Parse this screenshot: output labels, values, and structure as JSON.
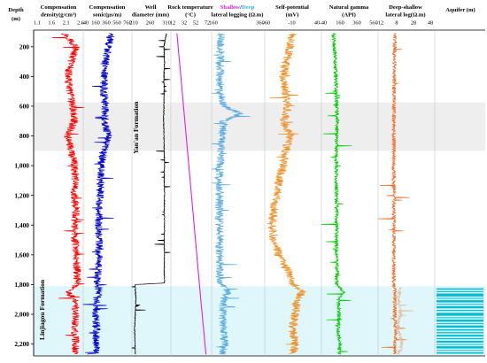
{
  "chart_data": {
    "type": "well-log",
    "depth_axis": {
      "label_line1": "Depth",
      "label_line2": "(m)",
      "range": [
        100,
        2280
      ],
      "ticks": [
        200,
        400,
        600,
        800,
        1000,
        1200,
        1400,
        1600,
        1800,
        2000,
        2200
      ],
      "tick_labels": [
        "200",
        "400",
        "600",
        "800",
        "1,000",
        "1,200",
        "1,400",
        "1,600",
        "1,800",
        "2,000",
        "2,200"
      ]
    },
    "highlight_bands": [
      {
        "top": 575,
        "bottom": 900,
        "color": "#eeeeee"
      },
      {
        "top": 1810,
        "bottom": 2280,
        "color": "#dff7fb"
      }
    ],
    "formations": [
      {
        "name": "Yan'an Formation",
        "top": 575,
        "bottom": 900
      },
      {
        "name": "Linjiagou Formation",
        "top": 1810,
        "bottom": 2280
      }
    ],
    "tracks": [
      {
        "id": "density",
        "title1": "Compensation",
        "title2": "density(g/cm³)",
        "ticks": [
          "1.1",
          "1.6",
          "2.1",
          "2.6"
        ],
        "series": [
          {
            "color": "#ff0000",
            "range": [
              1.1,
              2.6
            ],
            "points": [
              [
                110,
                2.0
              ],
              [
                200,
                2.35
              ],
              [
                300,
                2.2
              ],
              [
                400,
                2.1
              ],
              [
                500,
                2.15
              ],
              [
                600,
                2.25
              ],
              [
                700,
                2.3
              ],
              [
                800,
                2.1
              ],
              [
                900,
                2.2
              ],
              [
                1000,
                2.3
              ],
              [
                1100,
                2.32
              ],
              [
                1200,
                2.3
              ],
              [
                1300,
                2.35
              ],
              [
                1400,
                2.3
              ],
              [
                1500,
                2.32
              ],
              [
                1600,
                2.35
              ],
              [
                1700,
                2.38
              ],
              [
                1790,
                2.4
              ],
              [
                1850,
                2.1
              ],
              [
                1900,
                2.3
              ],
              [
                2000,
                2.35
              ],
              [
                2100,
                2.3
              ],
              [
                2200,
                2.35
              ],
              [
                2270,
                2.3
              ]
            ]
          }
        ]
      },
      {
        "id": "sonic",
        "title1": "Compensation",
        "title2": "sonic(µs/m)",
        "ticks": [
          "-40",
          "160",
          "360",
          "560",
          "760"
        ],
        "series": [
          {
            "color": "#0000cc",
            "range": [
              -40,
              760
            ],
            "points": [
              [
                110,
                420
              ],
              [
                200,
                380
              ],
              [
                300,
                330
              ],
              [
                400,
                320
              ],
              [
                500,
                300
              ],
              [
                600,
                330
              ],
              [
                700,
                320
              ],
              [
                800,
                380
              ],
              [
                900,
                300
              ],
              [
                1000,
                260
              ],
              [
                1100,
                250
              ],
              [
                1200,
                240
              ],
              [
                1300,
                230
              ],
              [
                1400,
                220
              ],
              [
                1500,
                230
              ],
              [
                1600,
                220
              ],
              [
                1700,
                210
              ],
              [
                1790,
                200
              ],
              [
                1850,
                230
              ],
              [
                1900,
                180
              ],
              [
                2000,
                170
              ],
              [
                2100,
                180
              ],
              [
                2200,
                170
              ],
              [
                2270,
                180
              ]
            ]
          }
        ]
      },
      {
        "id": "diameter",
        "title1": "Well",
        "title2": "diameter (mm)",
        "ticks": [
          "210",
          "260",
          "310"
        ],
        "series": [
          {
            "color": "#000000",
            "range": [
              205,
              330
            ],
            "points": [
              [
                110,
                318
              ],
              [
                200,
                310
              ],
              [
                300,
                312
              ],
              [
                400,
                310
              ],
              [
                500,
                311
              ],
              [
                600,
                310
              ],
              [
                700,
                309
              ],
              [
                800,
                310
              ],
              [
                900,
                311
              ],
              [
                1000,
                312
              ],
              [
                1100,
                311
              ],
              [
                1200,
                312
              ],
              [
                1300,
                311
              ],
              [
                1400,
                312
              ],
              [
                1500,
                311
              ],
              [
                1600,
                312
              ],
              [
                1700,
                311
              ],
              [
                1790,
                312
              ],
              [
                1800,
                215
              ],
              [
                1900,
                218
              ],
              [
                2000,
                216
              ],
              [
                2100,
                214
              ],
              [
                2200,
                215
              ],
              [
                2270,
                216
              ]
            ]
          }
        ]
      },
      {
        "id": "temperature",
        "title1": "Rock temperature",
        "title2": "(°C)",
        "ticks": [
          "12",
          "32",
          "52",
          "72"
        ],
        "series": [
          {
            "color": "#e020e0",
            "range": [
              12,
              72
            ],
            "points": [
              [
                110,
                21
              ],
              [
                400,
                27
              ],
              [
                700,
                33
              ],
              [
                1000,
                39
              ],
              [
                1300,
                45
              ],
              [
                1600,
                51
              ],
              [
                1900,
                57
              ],
              [
                2280,
                65
              ]
            ]
          }
        ]
      },
      {
        "id": "lateral",
        "title_parts": [
          {
            "text": "Shallow",
            "color": "#e020e0"
          },
          {
            "text": "/",
            "color": "#000000"
          },
          {
            "text": "Deep",
            "color": "#29b6f6"
          }
        ],
        "title2": "lateral logging (Ω.m)",
        "ticks": [
          "160",
          "360"
        ],
        "series": [
          {
            "color": "#5dade2",
            "range": [
              -40,
              400
            ],
            "points": [
              [
                110,
                40
              ],
              [
                300,
                30
              ],
              [
                500,
                30
              ],
              [
                600,
                70
              ],
              [
                650,
                200
              ],
              [
                700,
                60
              ],
              [
                800,
                50
              ],
              [
                900,
                40
              ],
              [
                1000,
                30
              ],
              [
                1200,
                25
              ],
              [
                1400,
                25
              ],
              [
                1600,
                30
              ],
              [
                1790,
                30
              ],
              [
                1850,
                100
              ],
              [
                1900,
                60
              ],
              [
                2000,
                50
              ],
              [
                2100,
                60
              ],
              [
                2200,
                70
              ],
              [
                2270,
                50
              ]
            ]
          }
        ]
      },
      {
        "id": "sp",
        "title1": "Self-potential",
        "title2": "(mV)",
        "ticks": [
          "-60",
          "-10",
          "40"
        ],
        "series": [
          {
            "color": "#f0932b",
            "range": [
              -60,
              60
            ],
            "points": [
              [
                110,
                0
              ],
              [
                200,
                -5
              ],
              [
                300,
                -15
              ],
              [
                400,
                -20
              ],
              [
                500,
                -15
              ],
              [
                600,
                -10
              ],
              [
                700,
                -20
              ],
              [
                800,
                -5
              ],
              [
                900,
                -15
              ],
              [
                1000,
                -20
              ],
              [
                1100,
                -30
              ],
              [
                1200,
                -35
              ],
              [
                1300,
                -40
              ],
              [
                1400,
                -45
              ],
              [
                1500,
                -40
              ],
              [
                1600,
                -30
              ],
              [
                1700,
                -10
              ],
              [
                1790,
                0
              ],
              [
                1850,
                20
              ],
              [
                1900,
                10
              ],
              [
                2000,
                5
              ],
              [
                2100,
                0
              ],
              [
                2200,
                5
              ],
              [
                2270,
                0
              ]
            ]
          }
        ]
      },
      {
        "id": "gamma",
        "title1": "Natural gamma",
        "title2": "(API)",
        "ticks": [
          "-40",
          "160",
          "360",
          "560"
        ],
        "series": [
          {
            "color": "#00cc00",
            "range": [
              -40,
              560
            ],
            "points": [
              [
                110,
                90
              ],
              [
                300,
                110
              ],
              [
                500,
                120
              ],
              [
                700,
                130
              ],
              [
                900,
                120
              ],
              [
                1100,
                120
              ],
              [
                1300,
                125
              ],
              [
                1500,
                120
              ],
              [
                1700,
                130
              ],
              [
                1790,
                120
              ],
              [
                1850,
                200
              ],
              [
                1900,
                140
              ],
              [
                2000,
                150
              ],
              [
                2100,
                140
              ],
              [
                2200,
                160
              ],
              [
                2270,
                150
              ]
            ]
          }
        ]
      },
      {
        "id": "deep-shallow",
        "title1": "Deep-shallow",
        "title2": "lateral log(Ω.m)",
        "ticks": [
          "-12",
          "8",
          "28",
          "48"
        ],
        "series": [
          {
            "color": "#f07030",
            "range": [
              -12,
              48
            ],
            "points": [
              [
                110,
                6
              ],
              [
                500,
                5
              ],
              [
                900,
                5
              ],
              [
                1300,
                5
              ],
              [
                1700,
                5
              ],
              [
                1790,
                5
              ],
              [
                1850,
                6
              ],
              [
                2000,
                6
              ],
              [
                2100,
                7
              ],
              [
                2200,
                6
              ],
              [
                2270,
                6
              ]
            ]
          },
          {
            "color": "#e0c0a0",
            "range": [
              -12,
              48
            ],
            "points": [
              [
                1820,
                12
              ],
              [
                1900,
                10
              ],
              [
                2000,
                12
              ],
              [
                2100,
                9
              ],
              [
                2200,
                14
              ],
              [
                2270,
                10
              ]
            ]
          }
        ]
      },
      {
        "id": "aquifer",
        "title1": "Aquifer (m)",
        "title2": "",
        "ticks": [],
        "aquifer_layers": [
          [
            1825,
            1835
          ],
          [
            1845,
            1850
          ],
          [
            1860,
            1880
          ],
          [
            1890,
            1895
          ],
          [
            1905,
            1920
          ],
          [
            1930,
            1936
          ],
          [
            1945,
            1960
          ],
          [
            1970,
            1978
          ],
          [
            1990,
            2010
          ],
          [
            2020,
            2025
          ],
          [
            2035,
            2050
          ],
          [
            2060,
            2066
          ],
          [
            2075,
            2090
          ],
          [
            2100,
            2110
          ],
          [
            2120,
            2128
          ],
          [
            2138,
            2150
          ],
          [
            2160,
            2168
          ],
          [
            2178,
            2190
          ],
          [
            2200,
            2206
          ],
          [
            2215,
            2230
          ],
          [
            2240,
            2246
          ],
          [
            2255,
            2265
          ]
        ],
        "aquifer_color": "#00bcd4"
      }
    ]
  }
}
